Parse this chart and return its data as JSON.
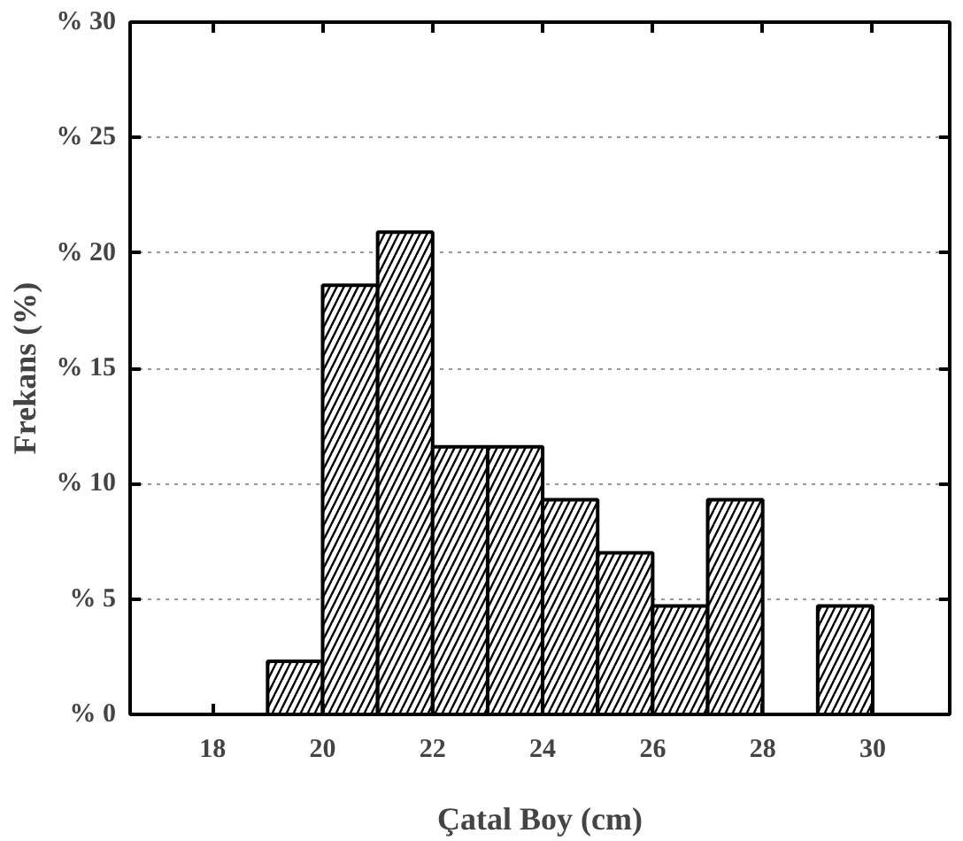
{
  "chart_data": {
    "type": "histogram",
    "xlabel": "Çatal Boy (cm)",
    "ylabel": "Frekans (%)",
    "bins": [
      19,
      20,
      21,
      22,
      23,
      24,
      25,
      26,
      27,
      28,
      29,
      30
    ],
    "values": [
      2.3,
      18.6,
      20.9,
      11.6,
      11.6,
      9.3,
      7.0,
      4.7,
      9.3,
      0,
      4.7
    ],
    "color": "#ffffff",
    "xlim": [
      16.5,
      31.4
    ],
    "xticks": [
      18,
      20,
      22,
      24,
      26,
      28,
      30
    ],
    "ylim": [
      0,
      30
    ],
    "yticks": [
      {
        "value": 0,
        "label": "% 0"
      },
      {
        "value": 5,
        "label": "% 5"
      },
      {
        "value": 10,
        "label": "% 10"
      },
      {
        "value": 15,
        "label": "% 15"
      },
      {
        "value": 20,
        "label": "% 20"
      },
      {
        "value": 25,
        "label": "% 25"
      },
      {
        "value": 30,
        "label": "% 30"
      }
    ],
    "grid": "y"
  }
}
